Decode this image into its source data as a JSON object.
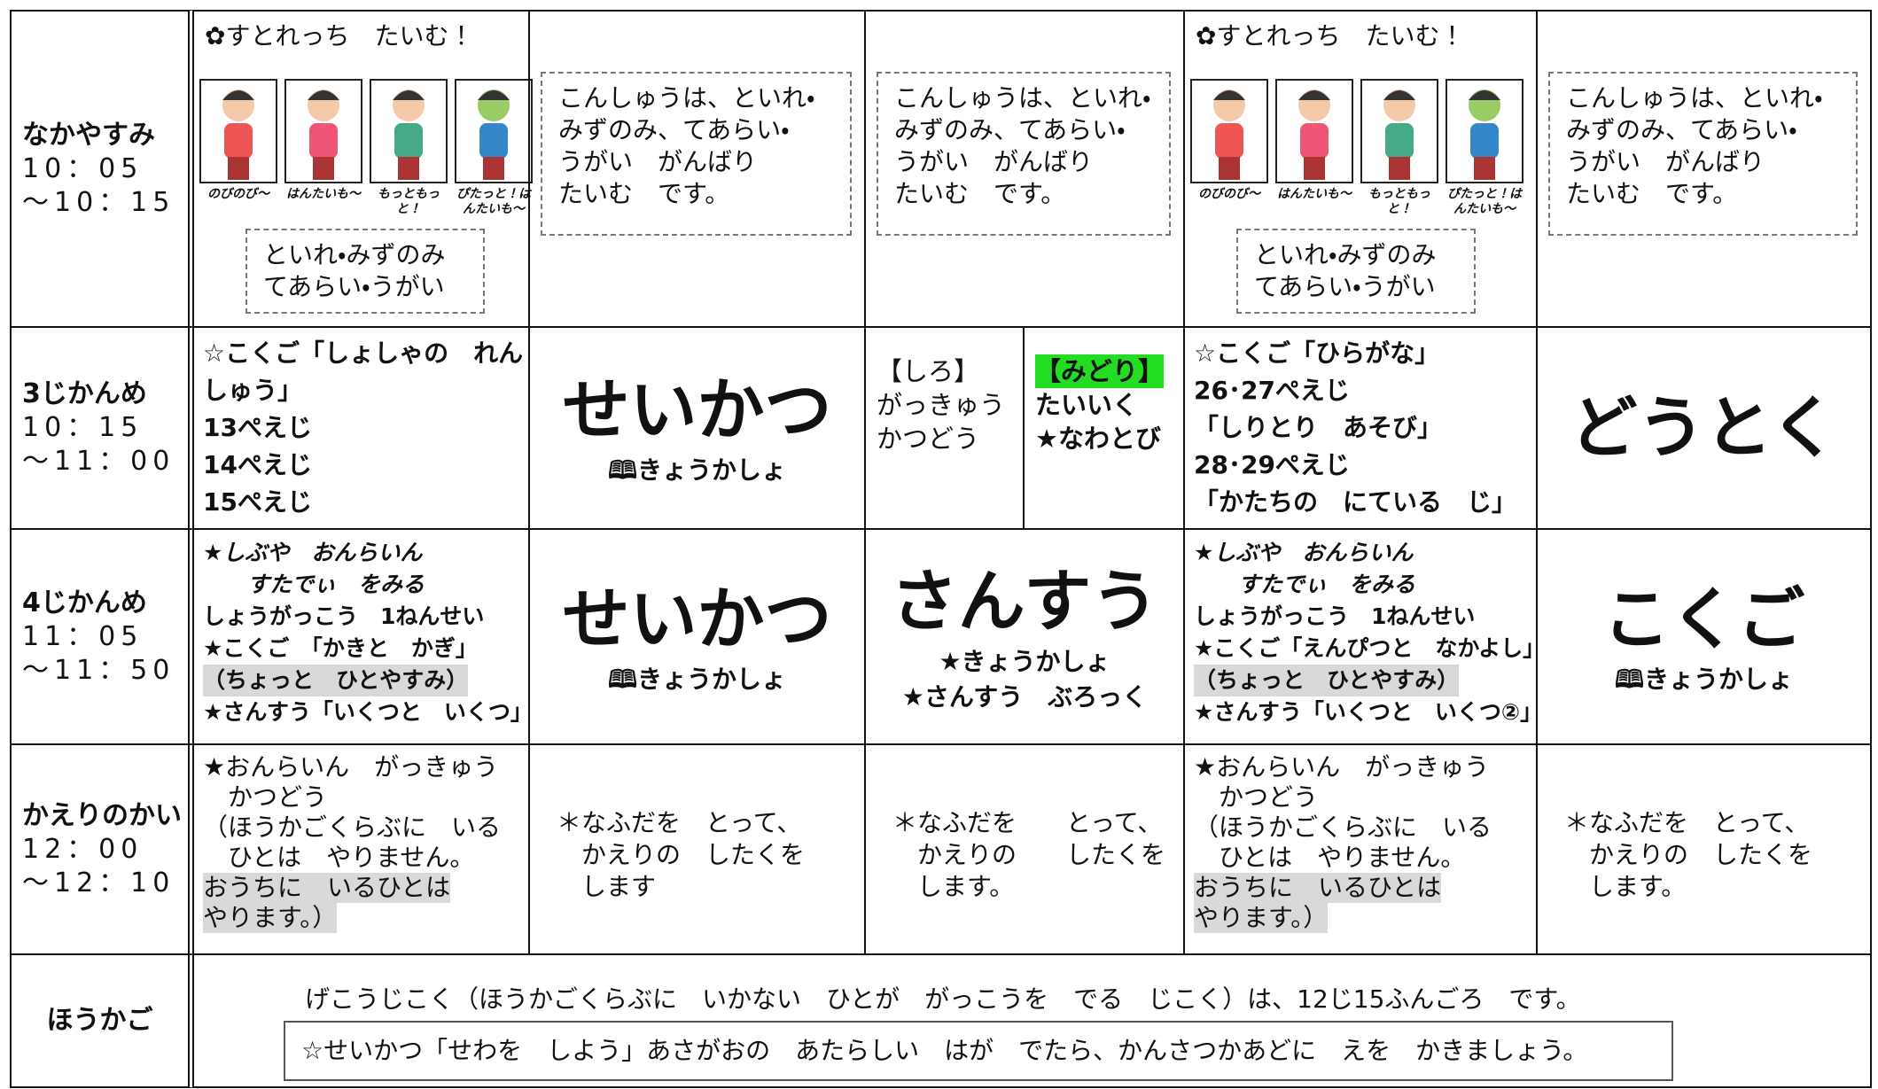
{
  "rows": [
    {
      "label": "なかやすみ",
      "time": [
        "10：05",
        "～10：15"
      ],
      "cells": [
        {
          "title": "✿すとれっち　たいむ！",
          "captions": [
            "のびのび～",
            "はんたいも～",
            "もっともっと！",
            "ぴたっと！はんたいも～"
          ],
          "note": [
            "といれ・みずのみ",
            "てあらい・うがい"
          ]
        },
        {
          "box": [
            "こんしゅうは、といれ・",
            "みずのみ、てあらい・",
            "うがい　がんばり",
            "たいむ　です。"
          ]
        },
        {
          "box": [
            "こんしゅうは、といれ・",
            "みずのみ、てあらい・",
            "うがい　がんばり",
            "たいむ　です。"
          ]
        },
        {
          "title": "✿すとれっち　たいむ！",
          "captions": [
            "のびのび～",
            "はんたいも～",
            "もっともっと！",
            "ぴたっと！はんたいも～"
          ],
          "note": [
            "といれ・みずのみ",
            "てあらい・うがい"
          ]
        },
        {
          "box": [
            "こんしゅうは、といれ・",
            "みずのみ、てあらい・",
            "うがい　がんばり",
            "たいむ　です。"
          ]
        }
      ]
    },
    {
      "label": "3じかんめ",
      "time": [
        "10：15",
        "～11：00"
      ],
      "cells": [
        {
          "lines": [
            "☆こくご「しょしゃの　れん",
            "しゅう」",
            "13ぺえじ",
            "14ぺえじ",
            "15ぺえじ"
          ]
        },
        {
          "big": "せいかつ",
          "sub": [
            "🕮きょうかしょ"
          ]
        },
        {
          "left": [
            "【しろ】",
            "がっきゅう",
            "かつどう"
          ],
          "right": [
            {
              "text": "【みどり】",
              "shade": "#22dd22"
            },
            "たいいく",
            "★なわとび"
          ]
        },
        {
          "lines": [
            "☆こくご「ひらがな」",
            "26･27ぺえじ",
            "「しりとり　あそび」",
            "28･29ぺえじ",
            "「かたちの　にている　じ」"
          ]
        },
        {
          "big": "どうとく"
        }
      ]
    },
    {
      "label": "4じかんめ",
      "time": [
        "11：05",
        "～11：50"
      ],
      "cells": [
        {
          "lines": [
            {
              "text": "★しぶや　おんらいん",
              "style": "italic"
            },
            {
              "text": "　　すたでぃ　をみる",
              "style": "italic"
            },
            "しょうがっこう　1ねんせい",
            "★こくご　「かきと　かぎ」",
            {
              "text": "（ちょっと　ひとやすみ）",
              "shade": "#d9d9d9"
            },
            "★さんすう「いくつと　いくつ」"
          ]
        },
        {
          "big": "せいかつ",
          "sub": [
            "🕮きょうかしょ"
          ]
        },
        {
          "big": "さんすう",
          "sub": [
            "★きょうかしょ",
            "★さんすう　ぶろっく"
          ]
        },
        {
          "lines": [
            {
              "text": "★しぶや　おんらいん",
              "style": "italic"
            },
            {
              "text": "　　すたでぃ　をみる",
              "style": "italic"
            },
            "しょうがっこう　1ねんせい",
            "★こくご「えんぴつと　なかよし」",
            {
              "text": "（ちょっと　ひとやすみ）",
              "shade": "#d9d9d9"
            },
            "★さんすう「いくつと　いくつ②」"
          ]
        },
        {
          "big": "こくご",
          "sub": [
            "🕮きょうかしょ"
          ]
        }
      ]
    },
    {
      "label": "かえりのかい",
      "time": [
        "12：00",
        "～12：10"
      ],
      "cells": [
        {
          "lines": [
            "★おんらいん　がっきゅう",
            "　かつどう",
            "（ほうかごくらぶに　いる",
            "　ひとは　やりません。",
            {
              "text": "おうちに　いるひとは",
              "shade": "#d9d9d9"
            },
            {
              "text": "やります。）",
              "shade": "#d9d9d9"
            }
          ]
        },
        {
          "box": [
            "＊なふだを　とって、",
            "　かえりの　したくを",
            "　します"
          ]
        },
        {
          "box": [
            "＊なふだを　　とって、",
            "　かえりの　　したくを",
            "　します。"
          ]
        },
        {
          "lines": [
            "★おんらいん　がっきゅう",
            "　かつどう",
            "（ほうかごくらぶに　いる",
            "　ひとは　やりません。",
            {
              "text": "おうちに　いるひとは",
              "shade": "#d9d9d9"
            },
            {
              "text": "やります。）",
              "shade": "#d9d9d9"
            }
          ]
        },
        {
          "box": [
            "＊なふだを　とって、",
            "　かえりの　したくを",
            "　します。"
          ]
        }
      ]
    }
  ],
  "after": {
    "label": "ほうかご",
    "text": "げこうじこく（ほうかごくらぶに　いかない　ひとが　がっこうを　でる　じこく）は、12じ15ふんごろ　です。",
    "box": "☆せいかつ「せわを　しよう」あさがおの　あたらしい　はが　でたら、かんさつかあどに　えを　かきましょう。"
  }
}
